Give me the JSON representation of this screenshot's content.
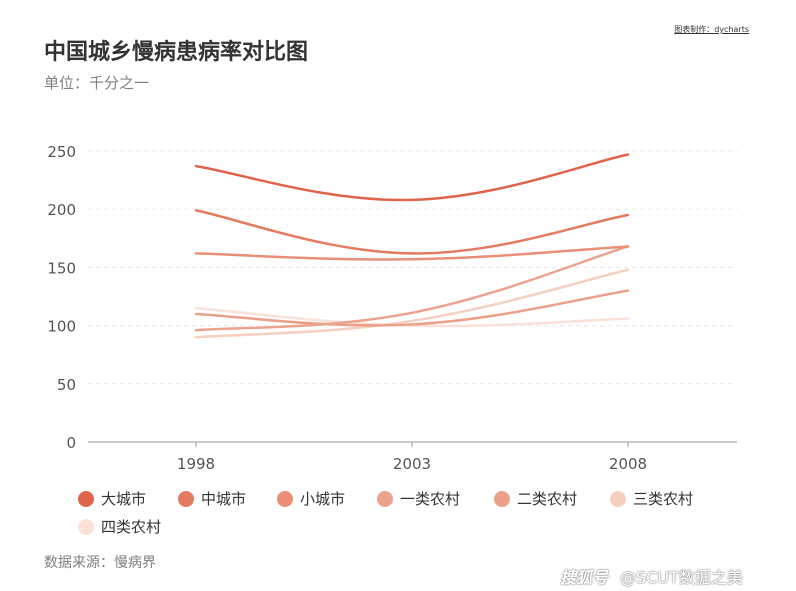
{
  "title": "中国城乡慢病患病率对比图",
  "subtitle": "单位：千分之一",
  "credit": "图表制作：dycharts",
  "source": "数据来源：慢病界",
  "watermark": {
    "logo": "搜狐号",
    "text": "@SCUT数据之美"
  },
  "chart_data": {
    "type": "line",
    "categories": [
      "1998",
      "2003",
      "2008"
    ],
    "ylim": [
      0,
      250
    ],
    "yticks": [
      0,
      50,
      100,
      150,
      200,
      250
    ],
    "grid": true,
    "legend_position": "bottom",
    "series": [
      {
        "name": "大城市",
        "values": [
          237,
          208,
          247
        ],
        "color": "#e0644a"
      },
      {
        "name": "中城市",
        "values": [
          199,
          162,
          195
        ],
        "color": "#e47a5f"
      },
      {
        "name": "小城市",
        "values": [
          162,
          157,
          168
        ],
        "color": "#e88f76"
      },
      {
        "name": "一类农村",
        "values": [
          96,
          111,
          168
        ],
        "color": "#eca38e"
      },
      {
        "name": "二类农村",
        "values": [
          110,
          101,
          130
        ],
        "color": "#eaa088"
      },
      {
        "name": "三类农村",
        "values": [
          90,
          104,
          148
        ],
        "color": "#f5cfc0"
      },
      {
        "name": "四类农村",
        "values": [
          115,
          100,
          106
        ],
        "color": "#fbe1d7"
      }
    ]
  }
}
